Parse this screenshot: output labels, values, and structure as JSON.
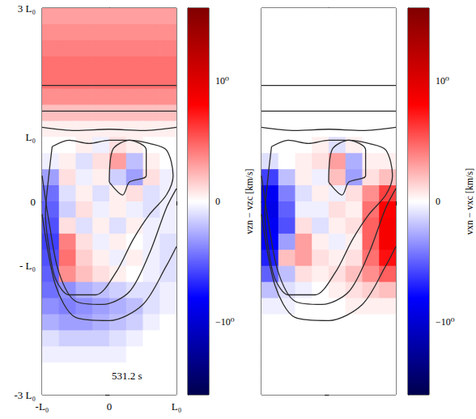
{
  "chart_data": [
    {
      "type": "heatmap",
      "annotation": "531.2 s",
      "colorbar_label": "vzn − vzc [km/s]",
      "colorbar_range": [
        -1.6,
        1.6
      ],
      "colorbar_ticks": [
        {
          "value": -1,
          "label": "−10⁰"
        },
        0,
        {
          "value": 1,
          "label": "10⁰"
        }
      ],
      "xlim": [
        -1,
        1
      ],
      "xticks": [
        {
          "value": -1,
          "label": "-L₀"
        },
        0,
        {
          "value": 1,
          "label": "L₀"
        }
      ],
      "ylim": [
        -3,
        3
      ],
      "yticks": [
        {
          "value": -3,
          "label": "-3 L₀"
        },
        {
          "value": -1,
          "label": "- L₀"
        },
        0,
        {
          "value": 1,
          "label": "L₀"
        },
        {
          "value": 3,
          "label": "3 L₀"
        }
      ],
      "grid": false,
      "x": [
        -0.875,
        -0.625,
        -0.375,
        -0.125,
        0.125,
        0.375,
        0.625,
        0.875
      ],
      "y": [
        2.875,
        2.625,
        2.375,
        2.125,
        1.875,
        1.625,
        1.375,
        1.125,
        0.875,
        0.625,
        0.375,
        0.125,
        -0.125,
        -0.375,
        -0.625,
        -0.875,
        -1.125,
        -1.375,
        -1.625,
        -1.875,
        -2.125,
        -2.375,
        -2.625,
        -2.875
      ],
      "values": [
        [
          0.3,
          0.3,
          0.3,
          0.3,
          0.3,
          0.3,
          0.3,
          0.3
        ],
        [
          0.35,
          0.35,
          0.35,
          0.35,
          0.35,
          0.35,
          0.35,
          0.35
        ],
        [
          0.4,
          0.4,
          0.4,
          0.4,
          0.4,
          0.4,
          0.4,
          0.4
        ],
        [
          0.45,
          0.45,
          0.45,
          0.45,
          0.45,
          0.45,
          0.45,
          0.45
        ],
        [
          0.45,
          0.45,
          0.45,
          0.45,
          0.45,
          0.45,
          0.45,
          0.45
        ],
        [
          0.35,
          0.35,
          0.35,
          0.35,
          0.35,
          0.35,
          0.35,
          0.35
        ],
        [
          0.2,
          0.2,
          0.2,
          0.2,
          0.2,
          0.2,
          0.2,
          0.2
        ],
        [
          0.05,
          0.05,
          0.05,
          0.05,
          0.05,
          0.05,
          0.05,
          0.05
        ],
        [
          0,
          0,
          0.05,
          -0.05,
          0.1,
          0.05,
          0,
          0
        ],
        [
          -0.05,
          0.05,
          -0.1,
          0.1,
          0.3,
          -0.2,
          0.05,
          0
        ],
        [
          -0.3,
          0.1,
          -0.05,
          0.05,
          -0.15,
          -0.3,
          0.1,
          -0.05
        ],
        [
          -0.45,
          -0.1,
          0.05,
          -0.1,
          0.05,
          0.1,
          -0.1,
          -0.05
        ],
        [
          -0.5,
          -0.15,
          0.1,
          -0.05,
          0.05,
          -0.05,
          -0.1,
          -0.05
        ],
        [
          -0.55,
          0.1,
          -0.1,
          0.05,
          -0.1,
          0.05,
          -0.05,
          -0.05
        ],
        [
          -0.6,
          0.4,
          0.1,
          -0.05,
          0.05,
          0,
          -0.05,
          -0.1
        ],
        [
          -0.55,
          0.45,
          0.15,
          0.05,
          -0.05,
          0.05,
          -0.05,
          -0.1
        ],
        [
          -0.5,
          0.35,
          0.2,
          0.1,
          0.05,
          0,
          -0.05,
          -0.1
        ],
        [
          -0.45,
          -0.35,
          -0.25,
          -0.2,
          -0.15,
          -0.1,
          -0.1,
          -0.05
        ],
        [
          -0.35,
          -0.4,
          -0.35,
          -0.3,
          -0.25,
          -0.2,
          -0.1,
          -0.05
        ],
        [
          -0.25,
          -0.3,
          -0.3,
          -0.25,
          -0.2,
          -0.15,
          -0.05,
          0
        ],
        [
          -0.1,
          -0.15,
          -0.15,
          -0.15,
          -0.1,
          -0.05,
          0,
          0
        ],
        [
          -0.05,
          -0.05,
          -0.05,
          -0.05,
          -0.05,
          0,
          0,
          0
        ],
        [
          0,
          0,
          0,
          0,
          0,
          0,
          0,
          0
        ],
        [
          0,
          0,
          0,
          0,
          0,
          0,
          0,
          0
        ]
      ],
      "contours": [
        [
          [
            -1,
            1.8
          ],
          [
            1,
            1.8
          ]
        ],
        [
          [
            -1,
            1.4
          ],
          [
            1,
            1.4
          ]
        ],
        [
          [
            -1,
            1.15
          ],
          [
            -0.5,
            1.1
          ],
          [
            0,
            1.12
          ],
          [
            0.5,
            1.1
          ],
          [
            1,
            1.15
          ]
        ],
        [
          [
            -0.85,
            0.85
          ],
          [
            -0.6,
            0.95
          ],
          [
            -0.3,
            0.9
          ],
          [
            0,
            0.95
          ],
          [
            0.3,
            0.95
          ],
          [
            0.6,
            0.9
          ],
          [
            0.85,
            0.8
          ],
          [
            0.95,
            0.4
          ],
          [
            0.85,
            0.1
          ],
          [
            0.6,
            -0.2
          ],
          [
            0.35,
            -0.6
          ],
          [
            0.1,
            -1.1
          ],
          [
            -0.2,
            -1.45
          ],
          [
            -0.6,
            -1.45
          ],
          [
            -0.8,
            -1.2
          ],
          [
            -0.9,
            -0.7
          ],
          [
            -0.95,
            -0.2
          ],
          [
            -0.9,
            0.4
          ],
          [
            -0.85,
            0.85
          ]
        ],
        [
          [
            0,
            0.3
          ],
          [
            0.05,
            0.8
          ],
          [
            0.3,
            0.95
          ],
          [
            0.55,
            0.8
          ],
          [
            0.55,
            0.4
          ],
          [
            0.3,
            0.3
          ],
          [
            0.2,
            0.1
          ],
          [
            0,
            0.3
          ]
        ],
        [
          [
            -1,
            0.4
          ],
          [
            -0.9,
            -0.3
          ],
          [
            -0.75,
            -1.1
          ],
          [
            -0.5,
            -1.55
          ],
          [
            -0.1,
            -1.6
          ],
          [
            0.3,
            -1.4
          ],
          [
            0.6,
            -0.8
          ],
          [
            0.85,
            -0.1
          ],
          [
            1,
            0.2
          ]
        ],
        [
          [
            -1,
            -0.2
          ],
          [
            -0.8,
            -1.3
          ],
          [
            -0.5,
            -1.8
          ],
          [
            0,
            -1.85
          ],
          [
            0.5,
            -1.6
          ],
          [
            0.85,
            -1.0
          ],
          [
            1,
            -0.7
          ]
        ]
      ]
    },
    {
      "type": "heatmap",
      "colorbar_label": "vxn − vxc [km/s]",
      "colorbar_range": [
        -1.6,
        1.6
      ],
      "colorbar_ticks": [
        {
          "value": -1,
          "label": "−10⁰"
        },
        0,
        {
          "value": 1,
          "label": "10⁰"
        }
      ],
      "xlim": [
        -1,
        1
      ],
      "xticks": [
        -1,
        0,
        1
      ],
      "ylim": [
        -3,
        3
      ],
      "yticks": [
        -3,
        -1,
        0,
        1,
        3
      ],
      "tick_labels": false,
      "grid": false,
      "x": [
        -0.875,
        -0.625,
        -0.375,
        -0.125,
        0.125,
        0.375,
        0.625,
        0.875
      ],
      "y": [
        2.875,
        2.625,
        2.375,
        2.125,
        1.875,
        1.625,
        1.375,
        1.125,
        0.875,
        0.625,
        0.375,
        0.125,
        -0.125,
        -0.375,
        -0.625,
        -0.875,
        -1.125,
        -1.375,
        -1.625,
        -1.875,
        -2.125,
        -2.375,
        -2.625,
        -2.875
      ],
      "values": [
        [
          0,
          0,
          0,
          0,
          0,
          0,
          0,
          0
        ],
        [
          0,
          0,
          0,
          0,
          0,
          0,
          0,
          0
        ],
        [
          0,
          0,
          0,
          0,
          0,
          0,
          0,
          0
        ],
        [
          0,
          0,
          0,
          0,
          0,
          0,
          0,
          0
        ],
        [
          0,
          0,
          0,
          0,
          0,
          0,
          0,
          0
        ],
        [
          0,
          0,
          0,
          0,
          0,
          0,
          0,
          0
        ],
        [
          0,
          0,
          0,
          0,
          0,
          0,
          0,
          0
        ],
        [
          0,
          0,
          0,
          0,
          0,
          0,
          0,
          0
        ],
        [
          0,
          0,
          0,
          0.05,
          -0.1,
          0.05,
          0,
          0
        ],
        [
          -0.1,
          0,
          0.05,
          0.1,
          0.3,
          -0.25,
          0.05,
          0.05
        ],
        [
          -0.6,
          -0.2,
          0.05,
          -0.05,
          0.2,
          -0.3,
          0.1,
          0.2
        ],
        [
          -0.85,
          -0.4,
          -0.1,
          0.05,
          -0.05,
          0.1,
          0.35,
          0.6
        ],
        [
          -0.9,
          -0.5,
          -0.05,
          -0.05,
          0.1,
          0.05,
          0.45,
          0.8
        ],
        [
          -0.85,
          -0.55,
          0.1,
          -0.1,
          0.05,
          0.1,
          0.5,
          0.85
        ],
        [
          -0.8,
          -0.3,
          0.3,
          0.05,
          -0.05,
          0.05,
          0.5,
          0.85
        ],
        [
          -0.7,
          0.2,
          0.3,
          0.1,
          0.05,
          0.1,
          0.45,
          0.75
        ],
        [
          -0.5,
          -0.2,
          0.1,
          0.05,
          0.1,
          0.2,
          0.35,
          0.5
        ],
        [
          -0.2,
          -0.1,
          -0.05,
          0,
          0.05,
          0.1,
          0.15,
          0.2
        ],
        [
          -0.05,
          -0.05,
          0,
          0,
          0,
          0.05,
          0.05,
          0.05
        ],
        [
          0,
          0,
          0,
          0,
          0,
          0,
          0,
          0
        ],
        [
          0,
          0,
          0,
          0,
          0,
          0,
          0,
          0
        ],
        [
          0,
          0,
          0,
          0,
          0,
          0,
          0,
          0
        ],
        [
          0,
          0,
          0,
          0,
          0,
          0,
          0,
          0
        ],
        [
          0,
          0,
          0,
          0,
          0,
          0,
          0,
          0
        ]
      ],
      "contours": [
        [
          [
            -1,
            1.8
          ],
          [
            1,
            1.8
          ]
        ],
        [
          [
            -1,
            1.4
          ],
          [
            1,
            1.4
          ]
        ],
        [
          [
            -1,
            1.15
          ],
          [
            -0.5,
            1.1
          ],
          [
            0,
            1.12
          ],
          [
            0.5,
            1.1
          ],
          [
            1,
            1.15
          ]
        ],
        [
          [
            -0.85,
            0.85
          ],
          [
            -0.6,
            0.95
          ],
          [
            -0.3,
            0.9
          ],
          [
            0,
            0.95
          ],
          [
            0.3,
            0.95
          ],
          [
            0.6,
            0.9
          ],
          [
            0.85,
            0.8
          ],
          [
            0.95,
            0.4
          ],
          [
            0.85,
            0.1
          ],
          [
            0.6,
            -0.2
          ],
          [
            0.35,
            -0.6
          ],
          [
            0.1,
            -1.1
          ],
          [
            -0.2,
            -1.45
          ],
          [
            -0.6,
            -1.45
          ],
          [
            -0.8,
            -1.2
          ],
          [
            -0.9,
            -0.7
          ],
          [
            -0.95,
            -0.2
          ],
          [
            -0.9,
            0.4
          ],
          [
            -0.85,
            0.85
          ]
        ],
        [
          [
            0,
            0.3
          ],
          [
            0.05,
            0.8
          ],
          [
            0.3,
            0.95
          ],
          [
            0.55,
            0.8
          ],
          [
            0.55,
            0.4
          ],
          [
            0.3,
            0.3
          ],
          [
            0.2,
            0.1
          ],
          [
            0,
            0.3
          ]
        ],
        [
          [
            -1,
            0.4
          ],
          [
            -0.9,
            -0.3
          ],
          [
            -0.75,
            -1.1
          ],
          [
            -0.5,
            -1.55
          ],
          [
            -0.1,
            -1.6
          ],
          [
            0.3,
            -1.4
          ],
          [
            0.6,
            -0.8
          ],
          [
            0.85,
            -0.1
          ],
          [
            1,
            0.2
          ]
        ],
        [
          [
            -1,
            -0.2
          ],
          [
            -0.8,
            -1.3
          ],
          [
            -0.5,
            -1.8
          ],
          [
            0,
            -1.85
          ],
          [
            0.5,
            -1.6
          ],
          [
            0.85,
            -1.0
          ],
          [
            1,
            -0.7
          ]
        ]
      ]
    }
  ]
}
